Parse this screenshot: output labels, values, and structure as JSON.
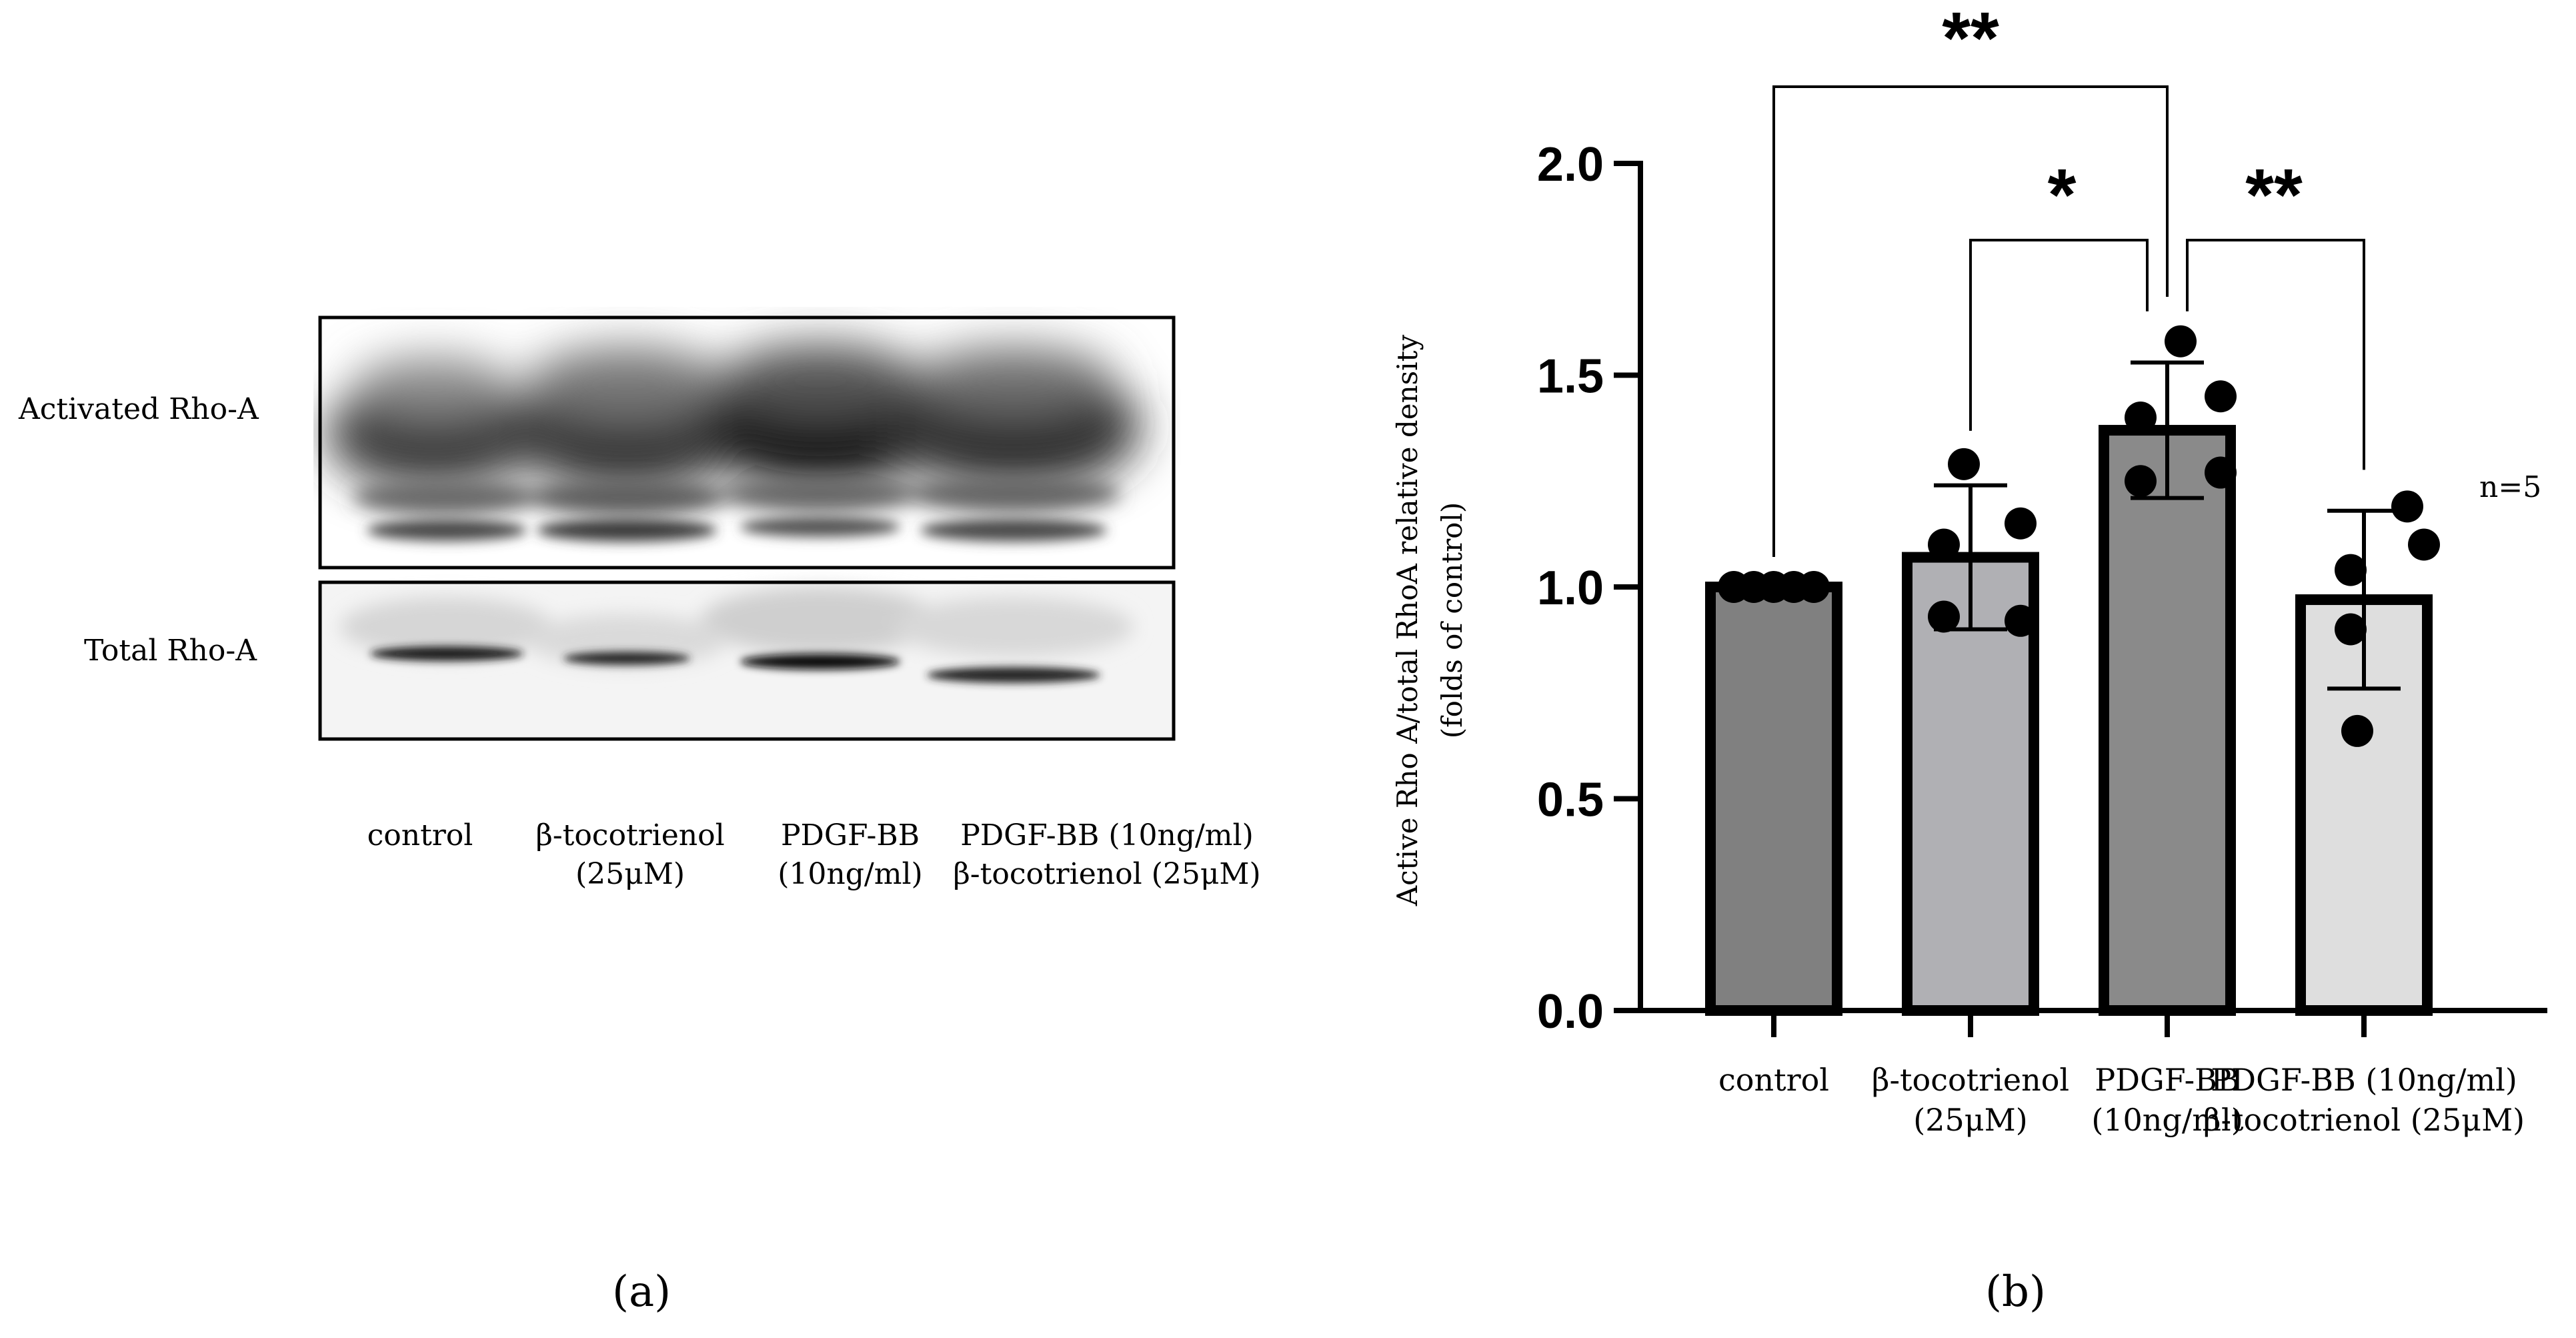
{
  "panels": {
    "a": "(a)",
    "b": "(b)"
  },
  "blot": {
    "rows": [
      "Activated Rho-A",
      "Total Rho-A"
    ],
    "lanes": [
      "control",
      "β-tocotrienol\n(25μM)",
      "PDGF-BB\n(10ng/ml)",
      "PDGF-BB (10ng/ml)\nβ-tocotrienol (25μM)"
    ]
  },
  "chart_data": {
    "type": "bar",
    "categories": [
      "control",
      "β-tocotrienol\n(25μM)",
      "PDGF-BB\n(10ng/ml)",
      "PDGF-BB (10ng/ml)\nβ-tocotrienol (25μM)"
    ],
    "values": [
      1.0,
      1.07,
      1.37,
      0.97
    ],
    "error": [
      0.0,
      0.17,
      0.16,
      0.21
    ],
    "points": [
      [
        1.0,
        1.0,
        1.0,
        1.0,
        1.0
      ],
      [
        1.29,
        1.1,
        1.15,
        0.93,
        0.92
      ],
      [
        1.58,
        1.45,
        1.4,
        1.27,
        1.25
      ],
      [
        1.19,
        1.1,
        1.04,
        0.9,
        0.66
      ]
    ],
    "bar_colors": [
      "#808080",
      "#b0b0b4",
      "#8a8a8a",
      "#dedede"
    ],
    "ylim": [
      0,
      2.0
    ],
    "yticks": [
      "0.0",
      "0.5",
      "1.0",
      "1.5",
      "2.0"
    ],
    "ylabel_line1": "Active Rho A/total  RhoA relative density",
    "ylabel_line2": "(folds of control)",
    "n_label": "n=5",
    "significance": [
      {
        "from": 0,
        "to": 2,
        "label": "**"
      },
      {
        "from": 1,
        "to": 2,
        "label": "*"
      },
      {
        "from": 2,
        "to": 3,
        "label": "**"
      }
    ]
  }
}
